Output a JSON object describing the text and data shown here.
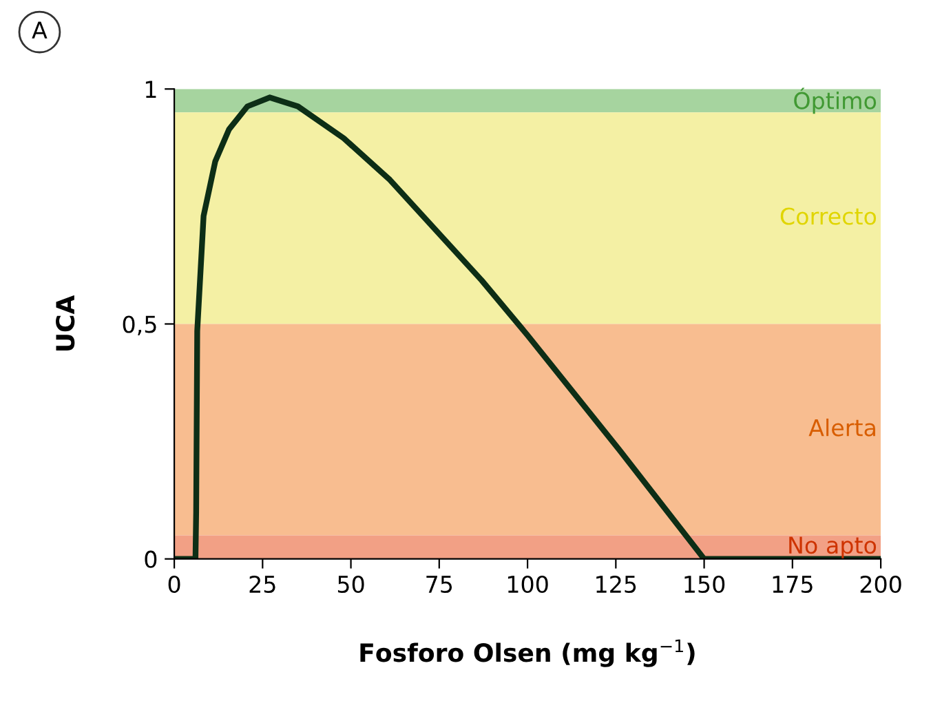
{
  "chart_data": {
    "type": "line",
    "xlabel": "Fosforo Olsen (mg kg$^{−1}$)",
    "ylabel": "UCA",
    "annotations": [
      "A"
    ],
    "x": [
      0,
      6,
      6.2,
      6.5,
      8.3,
      11.6,
      15.5,
      20.7,
      27,
      35,
      48,
      61,
      74,
      87,
      100,
      126,
      150,
      200
    ],
    "series": [
      {
        "color": "#0d2e16",
        "values": [
          0,
          0,
          0.1,
          0.485,
          0.73,
          0.846,
          0.914,
          0.963,
          0.982,
          0.963,
          0.895,
          0.807,
          0.7,
          0.593,
          0.476,
          0.232,
          0,
          0
        ]
      }
    ],
    "bands": [
      {
        "axis": "y",
        "from": 0.95,
        "to": 1,
        "label": "Óptimo",
        "color": "#a6d49f"
      },
      {
        "axis": "y",
        "from": 0.5,
        "to": 0.95,
        "label": "Correcto",
        "color": "#f4f0a4"
      },
      {
        "axis": "y",
        "from": 0.05,
        "to": 0.5,
        "label": "Alerta",
        "color": "#f8bd90"
      },
      {
        "axis": "y",
        "from": 0,
        "to": 0.05,
        "label": "No apto",
        "color": "#f2a085"
      }
    ],
    "xlim": [
      0,
      200
    ],
    "ylim": [
      0,
      1
    ],
    "xticks": [
      0,
      25,
      50,
      75,
      100,
      125,
      150,
      175,
      200
    ],
    "yticks": [
      0,
      {
        "value": 0.5,
        "label": "0,5"
      },
      1
    ],
    "grid": false,
    "legend": false,
    "marker": "none",
    "line_style": "solid"
  }
}
